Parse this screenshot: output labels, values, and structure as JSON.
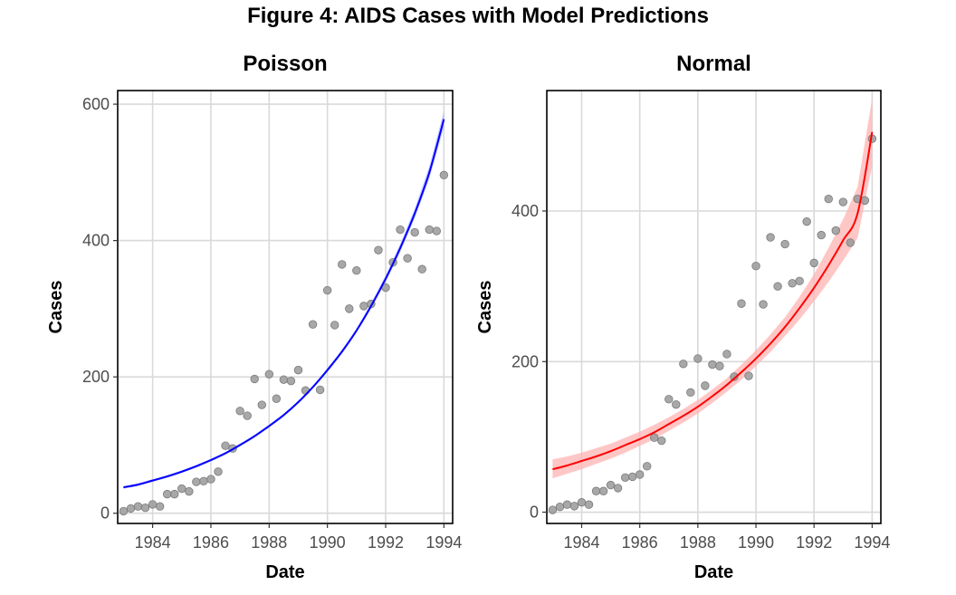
{
  "figure_title": "Figure 4: AIDS Cases with Model Predictions",
  "chart_data": [
    {
      "type": "scatter",
      "title": "Poisson",
      "xlabel": "Date",
      "ylabel": "Cases",
      "xlim": [
        1982.8,
        1994.3
      ],
      "ylim": [
        -15,
        620
      ],
      "x_ticks": [
        1984,
        1986,
        1988,
        1990,
        1992,
        1994
      ],
      "y_ticks": [
        0,
        200,
        400,
        600
      ],
      "point_color": "#999999",
      "fit_color": "#0000ff",
      "band_color": "#b3b3ff",
      "observed": {
        "x": [
          1983.0,
          1983.25,
          1983.5,
          1983.75,
          1984.0,
          1984.25,
          1984.5,
          1984.75,
          1985.0,
          1985.25,
          1985.5,
          1985.75,
          1986.0,
          1986.25,
          1986.5,
          1986.75,
          1987.0,
          1987.25,
          1987.5,
          1987.75,
          1988.0,
          1988.25,
          1988.5,
          1988.75,
          1989.0,
          1989.25,
          1989.5,
          1989.75,
          1990.0,
          1990.25,
          1990.5,
          1990.75,
          1991.0,
          1991.25,
          1991.5,
          1991.75,
          1992.0,
          1992.25,
          1992.5,
          1992.75,
          1993.0,
          1993.25,
          1993.5,
          1993.75,
          1994.0
        ],
        "y": [
          3,
          7,
          10,
          8,
          13,
          10,
          28,
          28,
          36,
          32,
          46,
          47,
          50,
          61,
          99,
          95,
          150,
          143,
          197,
          159,
          204,
          168,
          196,
          194,
          210,
          180,
          277,
          181,
          327,
          276,
          365,
          300,
          356,
          304,
          307,
          386,
          331,
          368,
          416,
          374,
          412,
          358,
          416,
          414,
          496
        ]
      },
      "fit": {
        "x": [
          1983.0,
          1983.5,
          1984.0,
          1984.5,
          1985.0,
          1985.5,
          1986.0,
          1986.5,
          1987.0,
          1987.5,
          1988.0,
          1988.5,
          1989.0,
          1989.5,
          1990.0,
          1990.5,
          1991.0,
          1991.5,
          1992.0,
          1992.5,
          1993.0,
          1993.5,
          1994.0
        ],
        "y": [
          38,
          42,
          48,
          54,
          61,
          69,
          78,
          88,
          100,
          113,
          128,
          144,
          163,
          185,
          210,
          237,
          268,
          304,
          344,
          389,
          440,
          500,
          578
        ],
        "lower": [
          36,
          40,
          46,
          52,
          59,
          67,
          76,
          86,
          98,
          111,
          126,
          142,
          161,
          183,
          207,
          234,
          265,
          300,
          339,
          383,
          433,
          491,
          566
        ],
        "upper": [
          40,
          44,
          50,
          56,
          63,
          71,
          80,
          90,
          102,
          115,
          130,
          146,
          165,
          187,
          213,
          240,
          271,
          308,
          349,
          395,
          447,
          509,
          590
        ]
      }
    },
    {
      "type": "scatter",
      "title": "Normal",
      "xlabel": "Date",
      "ylabel": "Cases",
      "xlim": [
        1982.8,
        1994.3
      ],
      "ylim": [
        -15,
        560
      ],
      "x_ticks": [
        1984,
        1986,
        1988,
        1990,
        1992,
        1994
      ],
      "y_ticks": [
        0,
        200,
        400
      ],
      "point_color": "#999999",
      "fit_color": "#ff0000",
      "band_color": "#ffb3b3",
      "observed": {
        "x": [
          1983.0,
          1983.25,
          1983.5,
          1983.75,
          1984.0,
          1984.25,
          1984.5,
          1984.75,
          1985.0,
          1985.25,
          1985.5,
          1985.75,
          1986.0,
          1986.25,
          1986.5,
          1986.75,
          1987.0,
          1987.25,
          1987.5,
          1987.75,
          1988.0,
          1988.25,
          1988.5,
          1988.75,
          1989.0,
          1989.25,
          1989.5,
          1989.75,
          1990.0,
          1990.25,
          1990.5,
          1990.75,
          1991.0,
          1991.25,
          1991.5,
          1991.75,
          1992.0,
          1992.25,
          1992.5,
          1992.75,
          1993.0,
          1993.25,
          1993.5,
          1993.75,
          1994.0
        ],
        "y": [
          3,
          7,
          10,
          8,
          13,
          10,
          28,
          28,
          36,
          32,
          46,
          47,
          50,
          61,
          99,
          95,
          150,
          143,
          197,
          159,
          204,
          168,
          196,
          194,
          210,
          180,
          277,
          181,
          327,
          276,
          365,
          300,
          356,
          304,
          307,
          386,
          331,
          368,
          416,
          374,
          412,
          358,
          416,
          414,
          496
        ]
      },
      "fit": {
        "x": [
          1983.0,
          1983.5,
          1984.0,
          1984.5,
          1985.0,
          1985.5,
          1986.0,
          1986.5,
          1987.0,
          1987.5,
          1988.0,
          1988.5,
          1989.0,
          1989.5,
          1990.0,
          1990.5,
          1991.0,
          1991.5,
          1992.0,
          1992.5,
          1993.0,
          1993.5,
          1994.0
        ],
        "y": [
          57,
          62,
          68,
          74,
          81,
          89,
          97,
          106,
          117,
          128,
          140,
          154,
          169,
          186,
          204,
          224,
          246,
          271,
          298,
          328,
          361,
          397,
          505
        ],
        "lower": [
          45,
          51,
          57,
          64,
          71,
          79,
          88,
          97,
          108,
          119,
          131,
          145,
          160,
          176,
          194,
          213,
          234,
          256,
          280,
          306,
          334,
          364,
          460
        ],
        "upper": [
          70,
          74,
          79,
          85,
          91,
          99,
          107,
          116,
          126,
          137,
          149,
          163,
          178,
          196,
          215,
          236,
          259,
          286,
          316,
          351,
          389,
          432,
          550
        ]
      }
    }
  ]
}
